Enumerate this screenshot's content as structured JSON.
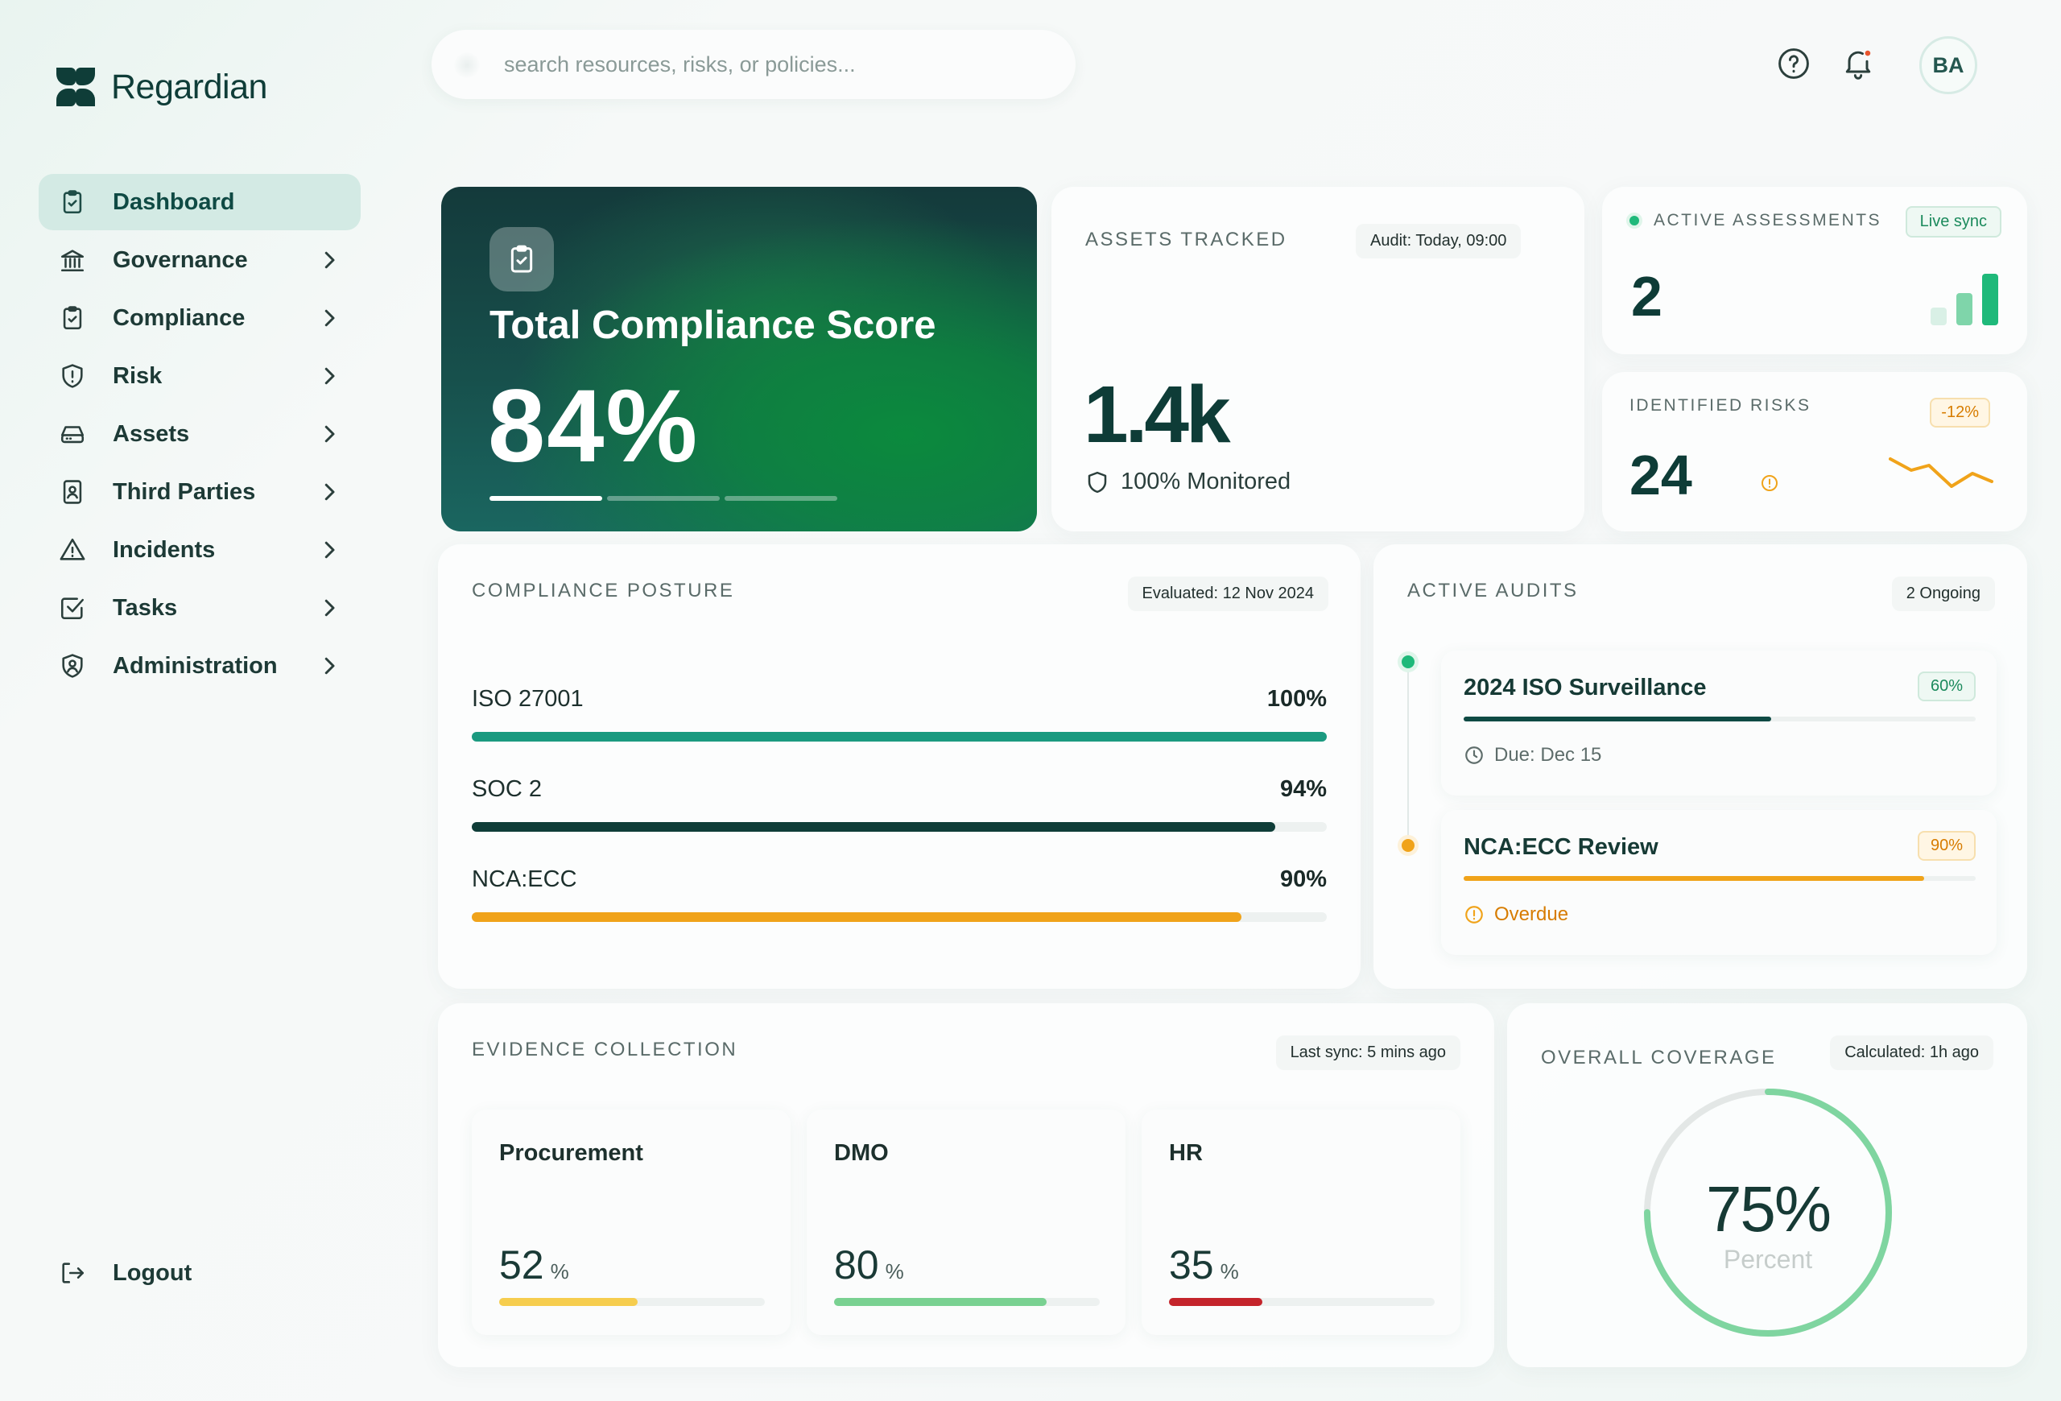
{
  "app": {
    "name": "Regardian"
  },
  "sidebar": {
    "items": [
      {
        "label": "Dashboard",
        "icon": "clipboard-check-icon"
      },
      {
        "label": "Governance",
        "icon": "bank-icon"
      },
      {
        "label": "Compliance",
        "icon": "clipboard-check-icon"
      },
      {
        "label": "Risk",
        "icon": "shield-alert-icon"
      },
      {
        "label": "Assets",
        "icon": "server-icon"
      },
      {
        "label": "Third Parties",
        "icon": "contact-icon"
      },
      {
        "label": "Incidents",
        "icon": "warning-icon"
      },
      {
        "label": "Tasks",
        "icon": "checkbox-icon"
      },
      {
        "label": "Administration",
        "icon": "shield-user-icon"
      }
    ],
    "logout_label": "Logout"
  },
  "header": {
    "search_placeholder": "search resources, risks, or policies...",
    "avatar_initials": "BA"
  },
  "hero": {
    "title": "Total Compliance Score",
    "value": "84%"
  },
  "assets": {
    "title": "ASSETS TRACKED",
    "audit_pill": "Audit: Today, 09:00",
    "value": "1.4k",
    "sub": "100% Monitored"
  },
  "assessments": {
    "title": "ACTIVE ASSESSMENTS",
    "badge": "Live sync",
    "value": "2"
  },
  "risks": {
    "title": "IDENTIFIED RISKS",
    "delta": "-12%",
    "value": "24"
  },
  "posture": {
    "title": "COMPLIANCE POSTURE",
    "evaluated": "Evaluated: 12 Nov 2024",
    "frameworks": [
      {
        "name": "ISO 27001",
        "value_label": "100%",
        "value": 100,
        "color": "#1b9a80"
      },
      {
        "name": "SOC 2",
        "value_label": "94%",
        "value": 94,
        "color": "#0f3d38"
      },
      {
        "name": "NCA:ECC",
        "value_label": "90%",
        "value": 90,
        "color": "#f0a31a"
      }
    ]
  },
  "audits": {
    "title": "ACTIVE AUDITS",
    "ongoing": "2 Ongoing",
    "items": [
      {
        "name": "2024 ISO Surveillance",
        "pct_label": "60%",
        "progress": 60,
        "sub": "Due: Dec 15",
        "color": "#0f4a44",
        "status": "due"
      },
      {
        "name": "NCA:ECC Review",
        "pct_label": "90%",
        "progress": 90,
        "sub": "Overdue",
        "color": "#f0a31a",
        "status": "overdue"
      }
    ]
  },
  "evidence": {
    "title": "EVIDENCE COLLECTION",
    "sync": "Last sync: 5 mins ago",
    "departments": [
      {
        "name": "Procurement",
        "value": "52",
        "unit": "%",
        "progress": 52,
        "color": "#f6cd4e"
      },
      {
        "name": "DMO",
        "value": "80",
        "unit": "%",
        "progress": 80,
        "color": "#79d191"
      },
      {
        "name": "HR",
        "value": "35",
        "unit": "%",
        "progress": 35,
        "color": "#c4242b"
      }
    ]
  },
  "coverage": {
    "title": "OVERALL COVERAGE",
    "calculated": "Calculated: 1h ago",
    "value": "75%",
    "progress": 75,
    "sub": "Percent"
  }
}
